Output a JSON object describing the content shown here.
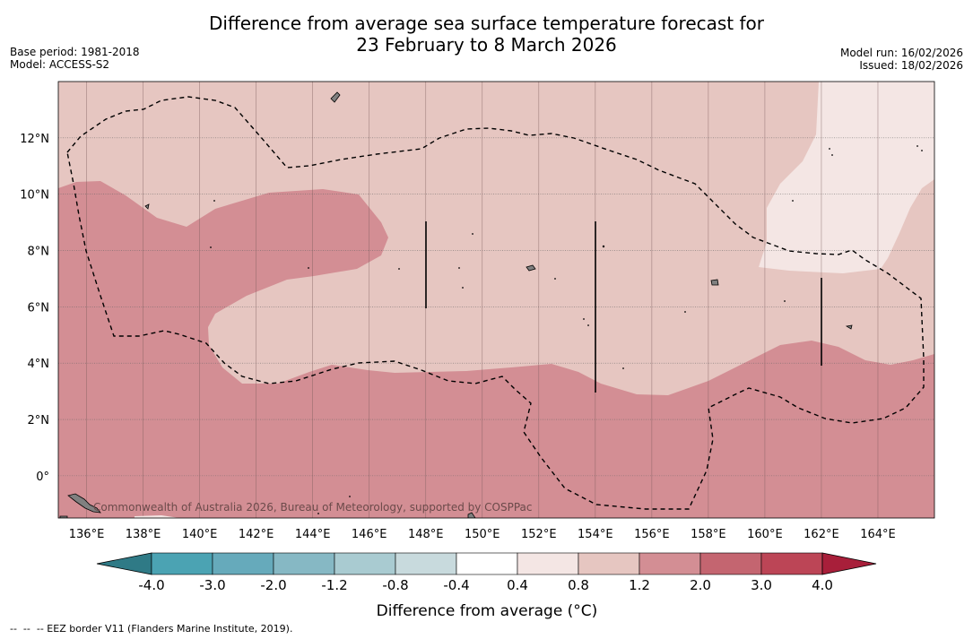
{
  "title": {
    "line1": "Difference from average sea surface temperature forecast for",
    "line2": "23 February to 8 March 2026"
  },
  "meta_left": {
    "base_period": "Base period: 1981-2018",
    "model": "Model: ACCESS-S2"
  },
  "meta_right": {
    "model_run": "Model run: 16/02/2026",
    "issued": "Issued: 18/02/2026"
  },
  "map": {
    "longitude_labels": [
      "136°E",
      "138°E",
      "140°E",
      "142°E",
      "144°E",
      "146°E",
      "148°E",
      "150°E",
      "152°E",
      "154°E",
      "156°E",
      "158°E",
      "160°E",
      "162°E",
      "164°E"
    ],
    "latitude_labels": [
      "12°N",
      "10°N",
      "8°N",
      "6°N",
      "4°N",
      "2°N",
      "0°"
    ],
    "lon_range": [
      135,
      166
    ],
    "lat_range": [
      -1.5,
      14
    ],
    "copyright": "Commonwealth of Australia 2026, Bureau of Meteorology, supported by COSPPac"
  },
  "colorbar": {
    "labels": [
      "-4.0",
      "-3.0",
      "-2.0",
      "-1.2",
      "-0.8",
      "-0.4",
      "0.4",
      "0.8",
      "1.2",
      "2.0",
      "3.0",
      "4.0"
    ],
    "colors": [
      "#4ba3b3",
      "#66aabb",
      "#86b8c4",
      "#a9cbd1",
      "#c8dadd",
      "#ffffff",
      "#f4e6e4",
      "#e6c6c1",
      "#d38e94",
      "#c46570",
      "#bc4556"
    ],
    "under_color": "#2f7a86",
    "over_color": "#a81f3a",
    "title": "Difference from average (°C)"
  },
  "colors": {
    "warm_light": "#e6c6c1",
    "warm_mid": "#d38e94",
    "warm_pale": "#f4e6e4",
    "eez": "#000000"
  },
  "footer": "--  --  -- EEZ border V11 (Flanders Marine Institute, 2019)."
}
